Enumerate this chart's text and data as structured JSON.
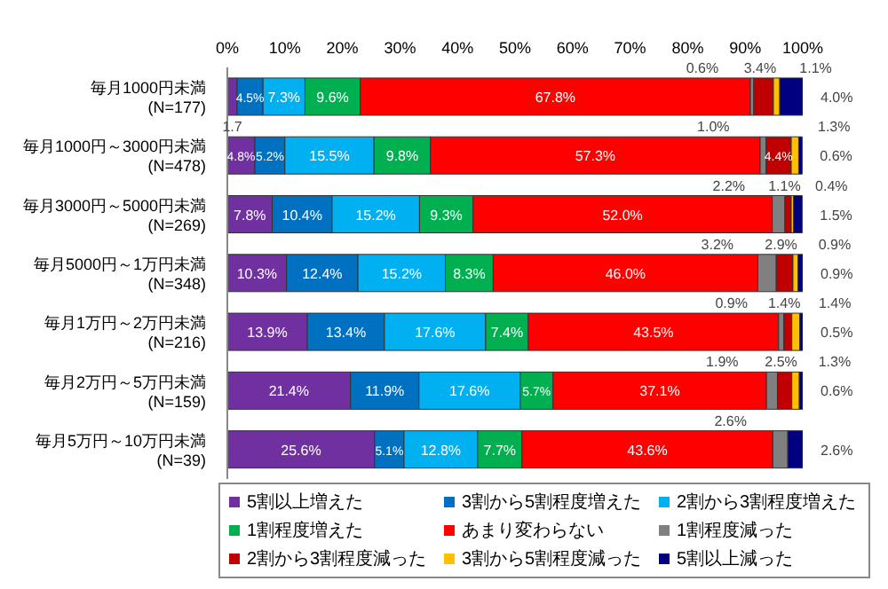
{
  "chart_data": {
    "type": "bar",
    "orientation": "horizontal",
    "stacked": true,
    "legend": "bottom",
    "grid": false,
    "categories": [
      "毎月1000円未満\n(N=177)",
      "毎月1000円～3000円未満\n(N=478)",
      "毎月3000円～5000円未満\n(N=269)",
      "毎月5000円～1万円未満\n(N=348)",
      "毎月1万円～2万円未満\n(N=216)",
      "毎月2万円～5万円未満\n(N=159)",
      "毎月5万円～10万円未満\n(N=39)"
    ],
    "xlim": [
      0,
      100
    ],
    "xticks": [
      {
        "value": 0,
        "label": "0%"
      },
      {
        "value": 10,
        "label": "10%"
      },
      {
        "value": 20,
        "label": "20%"
      },
      {
        "value": 30,
        "label": "30%"
      },
      {
        "value": 40,
        "label": "40%"
      },
      {
        "value": 50,
        "label": "50%"
      },
      {
        "value": 60,
        "label": "60%"
      },
      {
        "value": 70,
        "label": "70%"
      },
      {
        "value": 80,
        "label": "80%"
      },
      {
        "value": 90,
        "label": "90%"
      },
      {
        "value": 100,
        "label": "100%"
      }
    ],
    "series": [
      {
        "name": "5割以上増えた",
        "color": "#7030a0",
        "values": [
          1.7,
          4.8,
          7.8,
          10.3,
          13.9,
          21.4,
          25.6
        ],
        "value_labels": [
          "1.7",
          "4.8%",
          "7.8%",
          "10.3%",
          "13.9%",
          "21.4%",
          "25.6%"
        ]
      },
      {
        "name": "3割から5割程度増えた",
        "color": "#0070c0",
        "values": [
          4.5,
          5.2,
          10.4,
          12.4,
          13.4,
          11.9,
          5.1
        ],
        "value_labels": [
          "4.5%",
          "5.2%",
          "10.4%",
          "12.4%",
          "13.4%",
          "11.9%",
          "5.1%"
        ]
      },
      {
        "name": "2割から3割程度増えた",
        "color": "#00b0f0",
        "values": [
          7.3,
          15.5,
          15.2,
          15.2,
          17.6,
          17.6,
          12.8
        ],
        "value_labels": [
          "7.3%",
          "15.5%",
          "15.2%",
          "15.2%",
          "17.6%",
          "17.6%",
          "12.8%"
        ]
      },
      {
        "name": "1割程度増えた",
        "color": "#00b050",
        "values": [
          9.6,
          9.8,
          9.3,
          8.3,
          7.4,
          5.7,
          7.7
        ],
        "value_labels": [
          "9.6%",
          "9.8%",
          "9.3%",
          "8.3%",
          "7.4%",
          "5.7%",
          "7.7%"
        ]
      },
      {
        "name": "あまり変わらない",
        "color": "#ff0000",
        "values": [
          67.8,
          57.3,
          52.0,
          46.0,
          43.5,
          37.1,
          43.6
        ],
        "value_labels": [
          "67.8%",
          "57.3%",
          "52.0%",
          "46.0%",
          "43.5%",
          "37.1%",
          "43.6%"
        ]
      },
      {
        "name": "1割程度減った",
        "color": "#808080",
        "values": [
          0.6,
          1.0,
          2.2,
          3.2,
          0.9,
          1.9,
          2.6
        ],
        "value_labels": [
          "0.6%",
          "1.0%",
          "2.2%",
          "3.2%",
          "0.9%",
          "1.9%",
          "2.6%"
        ]
      },
      {
        "name": "2割から3割程度減った",
        "color": "#c00000",
        "values": [
          3.4,
          4.4,
          1.1,
          2.9,
          1.4,
          2.5,
          null
        ],
        "value_labels": [
          "3.4%",
          "4.4%",
          "1.1%",
          "2.9%",
          "1.4%",
          "2.5%",
          null
        ]
      },
      {
        "name": "3割から5割程度減った",
        "color": "#ffc000",
        "values": [
          1.1,
          1.3,
          0.4,
          0.9,
          1.4,
          1.3,
          null
        ],
        "value_labels": [
          "1.1%",
          "1.3%",
          "0.4%",
          "0.9%",
          "1.4%",
          "1.3%",
          null
        ]
      },
      {
        "name": "5割以上減った",
        "color": "#000080",
        "values": [
          4.0,
          0.6,
          1.5,
          0.9,
          0.5,
          0.6,
          2.6
        ],
        "value_labels": [
          "4.0%",
          "0.6%",
          "1.5%",
          "0.9%",
          "0.5%",
          "0.6%",
          "2.6%"
        ]
      }
    ]
  }
}
